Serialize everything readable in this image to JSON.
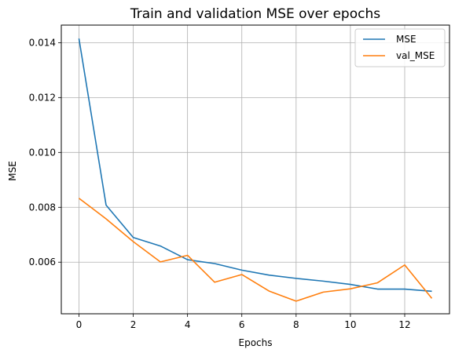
{
  "chart_data": {
    "type": "line",
    "title": "Train and validation MSE over epochs",
    "xlabel": "Epochs",
    "ylabel": "MSE",
    "x": [
      0,
      1,
      2,
      3,
      4,
      5,
      6,
      7,
      8,
      9,
      10,
      11,
      12,
      13
    ],
    "series": [
      {
        "name": "MSE",
        "color": "#1f77b4",
        "values": [
          0.01415,
          0.00808,
          0.0069,
          0.00659,
          0.00609,
          0.00595,
          0.00571,
          0.00553,
          0.00541,
          0.00531,
          0.00519,
          0.00502,
          0.00502,
          0.00494
        ]
      },
      {
        "name": "val_MSE",
        "color": "#ff7f0e",
        "values": [
          0.00833,
          0.00758,
          0.00675,
          0.00601,
          0.00625,
          0.00527,
          0.00555,
          0.00495,
          0.00458,
          0.00491,
          0.00503,
          0.00525,
          0.0059,
          0.00468
        ]
      }
    ],
    "xlim": [
      -0.65,
      13.65
    ],
    "ylim": [
      0.00412,
      0.01464
    ],
    "x_ticks": [
      0,
      2,
      4,
      6,
      8,
      10,
      12
    ],
    "x_tick_labels": [
      "0",
      "2",
      "4",
      "6",
      "8",
      "10",
      "12"
    ],
    "y_ticks": [
      0.006,
      0.008,
      0.01,
      0.012,
      0.014
    ],
    "y_tick_labels": [
      "0.006",
      "0.008",
      "0.010",
      "0.012",
      "0.014"
    ],
    "grid": true,
    "legend_position": "top-right"
  }
}
